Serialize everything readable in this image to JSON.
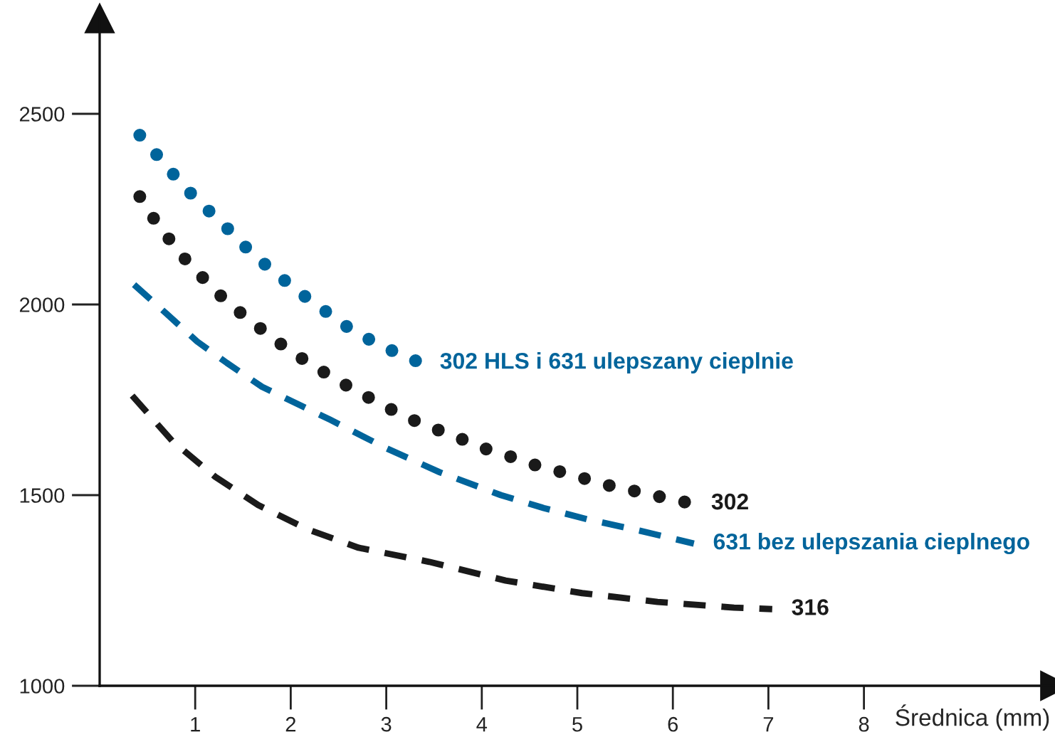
{
  "chart_data": {
    "type": "line",
    "xlabel": "Średnica (mm)",
    "xlim": [
      0,
      10
    ],
    "ylim": [
      1000,
      2750
    ],
    "xticks": [
      1,
      2,
      3,
      4,
      5,
      6,
      7,
      8
    ],
    "yticks": [
      1000,
      1500,
      2000,
      2500
    ],
    "grid": false,
    "legend": false,
    "series": [
      {
        "name": "302 HLS i 631 ulepszany cieplnie",
        "color": "#00649b",
        "line_style": "dotted",
        "x": [
          0.42,
          0.6,
          0.78,
          0.97,
          1.17,
          1.36,
          1.55,
          1.75,
          1.97,
          2.18,
          2.41,
          2.62,
          2.86,
          3.11,
          3.36
        ],
        "values": [
          2444,
          2392,
          2339,
          2287,
          2239,
          2194,
          2145,
          2101,
          2056,
          2015,
          1974,
          1936,
          1903,
          1873,
          1847
        ]
      },
      {
        "name": "302",
        "color": "#1a1a1a",
        "line_style": "dotted",
        "x": [
          0.42,
          0.58,
          0.75,
          0.93,
          1.12,
          1.33,
          1.55,
          1.76,
          2.0,
          2.24,
          2.48,
          2.72,
          2.97,
          3.24,
          3.5,
          3.77,
          4.02,
          4.3,
          4.57,
          4.84,
          5.11,
          5.38,
          5.67,
          5.93,
          6.2
        ],
        "values": [
          2283,
          2220,
          2164,
          2108,
          2060,
          2007,
          1963,
          1922,
          1877,
          1839,
          1802,
          1769,
          1735,
          1701,
          1675,
          1649,
          1623,
          1601,
          1578,
          1560,
          1541,
          1522,
          1507,
          1492,
          1478
        ]
      },
      {
        "name": "631 bez ulepszania cieplnego",
        "color": "#00649b",
        "line_style": "dashed",
        "x": [
          0.36,
          0.69,
          1.02,
          1.33,
          1.7,
          2.41,
          3.0,
          3.56,
          4.2,
          4.65,
          5.1,
          5.65,
          6.22
        ],
        "values": [
          2052,
          1978,
          1903,
          1847,
          1784,
          1698,
          1623,
          1560,
          1500,
          1466,
          1437,
          1407,
          1373
        ]
      },
      {
        "name": "316",
        "color": "#1a1a1a",
        "line_style": "dashed",
        "x": [
          0.34,
          0.76,
          1.21,
          1.66,
          2.18,
          2.71,
          3.45,
          4.25,
          5.05,
          5.84,
          6.64,
          7.04
        ],
        "values": [
          1761,
          1642,
          1548,
          1474,
          1410,
          1362,
          1325,
          1276,
          1243,
          1220,
          1205,
          1201
        ]
      }
    ]
  }
}
